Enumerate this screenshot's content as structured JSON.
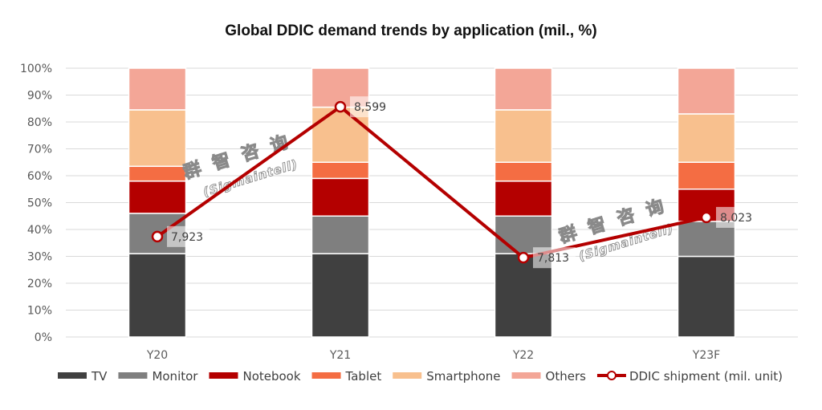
{
  "chart_data": {
    "type": "bar",
    "subtype": "stacked-100-with-line",
    "title": "Global DDIC demand trends by application (mil., %)",
    "xlabel": "",
    "ylabel": "",
    "ylim": [
      0,
      100
    ],
    "y_ticks": [
      "0%",
      "10%",
      "20%",
      "30%",
      "40%",
      "50%",
      "60%",
      "70%",
      "80%",
      "90%",
      "100%"
    ],
    "grid": true,
    "legend_position": "bottom",
    "categories": [
      "Y20",
      "Y21",
      "Y22",
      "Y23F"
    ],
    "series": [
      {
        "name": "TV",
        "color": "#404040",
        "values": [
          31,
          31,
          31,
          30
        ]
      },
      {
        "name": "Monitor",
        "color": "#7f7f7f",
        "values": [
          15,
          14,
          14,
          13
        ]
      },
      {
        "name": "Notebook",
        "color": "#b40000",
        "values": [
          12,
          14,
          13,
          12
        ]
      },
      {
        "name": "Tablet",
        "color": "#f46d43",
        "values": [
          5.5,
          6,
          7,
          10
        ]
      },
      {
        "name": "Smartphone",
        "color": "#f8c08e",
        "values": [
          21,
          20.5,
          19.5,
          18
        ]
      },
      {
        "name": "Others",
        "color": "#f3a697",
        "values": [
          15.5,
          14.5,
          15.5,
          17
        ]
      }
    ],
    "line_series": {
      "name": "DDIC shipment (mil. unit)",
      "color": "#b40000",
      "values": [
        7923,
        8599,
        7813,
        8023
      ],
      "labels": [
        "7,923",
        "8,599",
        "7,813",
        "8,023"
      ],
      "secondary_axis_hidden": true,
      "secondary_ylim": [
        7400,
        8800
      ]
    },
    "watermark": {
      "chinese": "群 智 咨 询",
      "english": "(Sigmaintell)"
    }
  }
}
